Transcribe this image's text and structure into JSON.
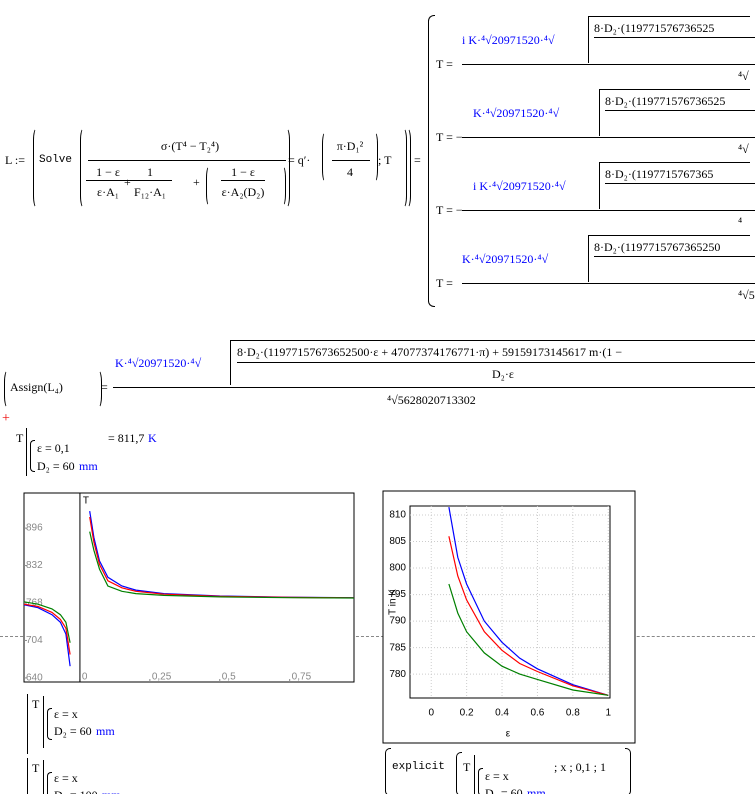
{
  "definition": {
    "lhs": "L :=",
    "solve": "Solve",
    "numerator": "σ·(T⁴ − T₂⁴)",
    "den_terms": [
      {
        "num": "1 − ε",
        "den": "ε·A₁"
      },
      {
        "num": "1",
        "den": "F₁₂·A₁"
      },
      {
        "num": "1 − ε",
        "den": "ε·A₂(D₂)"
      }
    ],
    "plus": "+",
    "equals_q": "= q′·",
    "area_num": "π·D₁²",
    "area_den": "4",
    "var": "; T",
    "result_eq": "="
  },
  "solutions": [
    {
      "lhs": "T =",
      "coef": "i K·⁴√20971520·⁴√",
      "radicand": "8·D₂·(119771576736525",
      "den": "⁴√"
    },
    {
      "lhs": "T = −",
      "coef": "K·⁴√20971520·⁴√",
      "radicand": "8·D₂·(119771576736525",
      "den": "⁴√"
    },
    {
      "lhs": "T = −",
      "coef": "i K·⁴√20971520·⁴√",
      "radicand": "8·D₂·(1197715767365",
      "den": "⁴"
    },
    {
      "lhs": "T =",
      "coef": "K·⁴√20971520·⁴√",
      "radicand": "8·D₂·(1197715767365250",
      "den": "⁴√5"
    }
  ],
  "assign": {
    "lhs": "Assign(L₄)",
    "eq": "=",
    "coef": "K·⁴√20971520·⁴√",
    "radicand": "8·D₂·(11977157673652500·ε + 47077374176771·π) + 59159173145617 m·(1 −",
    "radicand_den": "D₂·ε",
    "den": "⁴√5628020713302"
  },
  "evaluation": {
    "var": "T",
    "eps": "ε = 0,1",
    "d2": "D₂ = 60",
    "unit_mm": "mm",
    "result": "= 811,7",
    "unit_k": "K"
  },
  "plots": [
    {
      "type": "line",
      "y_label": "T",
      "xlim": [
        -0.2,
        0.98
      ],
      "ylim": [
        633,
        956
      ],
      "xticks": [
        0,
        {
          "value": 0.25,
          "label": "0,25"
        },
        {
          "value": 0.5,
          "label": "0,5"
        },
        {
          "value": 0.75,
          "label": "0,75"
        }
      ],
      "yticks": [
        640,
        704,
        768,
        832,
        896
      ],
      "x": [
        -0.2,
        -0.15,
        -0.1,
        -0.07,
        -0.05,
        -0.035,
        0,
        0.035,
        0.05,
        0.07,
        0.1,
        0.15,
        0.2,
        0.3,
        0.5,
        0.75,
        0.98
      ],
      "series": [
        {
          "color": "#0000ff",
          "values": [
            765,
            760,
            748,
            735,
            715,
            660,
            null,
            925,
            880,
            840,
            812,
            797,
            790,
            784,
            780,
            778,
            777
          ]
        },
        {
          "color": "#ff0000",
          "values": [
            766,
            762,
            752,
            740,
            725,
            680,
            null,
            915,
            872,
            834,
            806,
            794,
            788,
            783,
            779.5,
            777.5,
            776.8
          ]
        },
        {
          "color": "#008000",
          "values": [
            770,
            766,
            758,
            748,
            735,
            700,
            null,
            890,
            858,
            826,
            797,
            788,
            784,
            781,
            778.5,
            777,
            776.5
          ]
        }
      ]
    },
    {
      "type": "line",
      "x_label": "ε",
      "y_label": "T in K",
      "xlim": [
        -0.12,
        1.01
      ],
      "ylim": [
        775.5,
        811.7
      ],
      "grid": true,
      "xticks": [
        0,
        0.2,
        0.4,
        0.6,
        0.8,
        1
      ],
      "yticks": [
        780,
        785,
        790,
        795,
        800,
        805,
        810
      ],
      "x": [
        0.1,
        0.15,
        0.2,
        0.3,
        0.4,
        0.5,
        0.6,
        0.8,
        1
      ],
      "series": [
        {
          "color": "#0000ff",
          "values": [
            811.5,
            802,
            797,
            790,
            786,
            783,
            781,
            778,
            776
          ]
        },
        {
          "color": "#ff0000",
          "values": [
            806,
            798.5,
            794,
            788,
            784.5,
            782,
            780.5,
            777.8,
            776
          ]
        },
        {
          "color": "#008000",
          "values": [
            797,
            791.5,
            788,
            784,
            781.5,
            780,
            779,
            777,
            776
          ]
        }
      ]
    }
  ],
  "traces": [
    {
      "var": "T",
      "eps": "ε = x",
      "d2": "D₂ = 60",
      "unit": "mm"
    },
    {
      "var": "T",
      "eps": "ε = x",
      "d2": "D₂ = 100",
      "unit": "mm"
    }
  ],
  "explicit": {
    "keyword": "explicit",
    "var": "T",
    "eps": "ε = x",
    "args": "; x ; 0,1 ; 1",
    "d2": "D₂ = 60",
    "unit": "mm"
  }
}
